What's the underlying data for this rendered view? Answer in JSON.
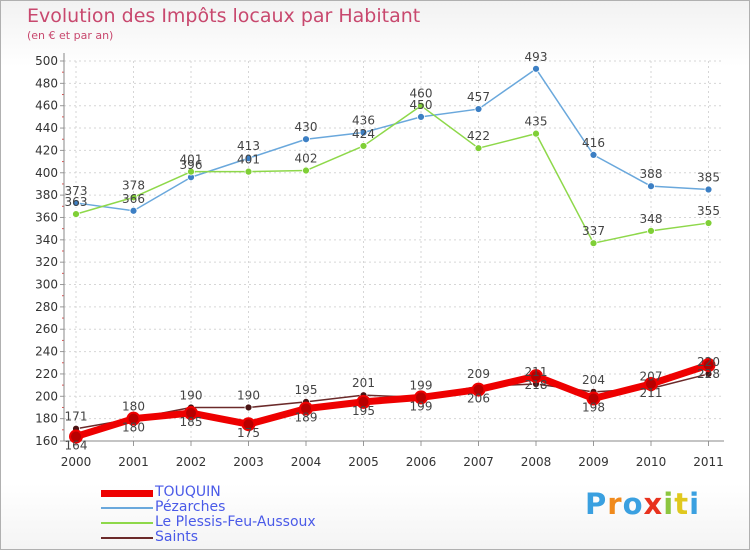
{
  "title": "Evolution des Impôts locaux par Habitant",
  "subtitle": "(en € et par an)",
  "logo": {
    "text": "Proxiti",
    "letter_colors": [
      "#3aa0e0",
      "#f08a1c",
      "#3aa0e0",
      "#e8321e",
      "#8cc63f",
      "#e0c81e",
      "#3aa0e0"
    ]
  },
  "chart_data": {
    "type": "line",
    "title": "Evolution des Impôts locaux par Habitant",
    "subtitle": "(en € et par an)",
    "xlabel": "",
    "ylabel": "",
    "categories": [
      "2000",
      "2001",
      "2002",
      "2003",
      "2004",
      "2005",
      "2006",
      "2007",
      "2008",
      "2009",
      "2010",
      "2011"
    ],
    "ylim": [
      160,
      500
    ],
    "yticks": [
      160,
      180,
      200,
      220,
      240,
      260,
      280,
      300,
      320,
      340,
      360,
      380,
      400,
      420,
      440,
      460,
      480,
      500
    ],
    "grid": true,
    "legend_position": "bottom-left",
    "series": [
      {
        "name": "TOUQUIN",
        "color": "#ee0000",
        "values": [
          164,
          180,
          185,
          175,
          189,
          195,
          199,
          206,
          218,
          198,
          211,
          228
        ]
      },
      {
        "name": "Pézarches",
        "color": "#6aa8dc",
        "values": [
          373,
          366,
          396,
          413,
          430,
          436,
          450,
          457,
          493,
          416,
          388,
          385
        ]
      },
      {
        "name": "Le Plessis-Feu-Aussoux",
        "color": "#8ed84a",
        "values": [
          363,
          378,
          401,
          401,
          402,
          424,
          460,
          422,
          435,
          337,
          348,
          355
        ]
      },
      {
        "name": "Saints",
        "color": "#6b2a2a",
        "values": [
          171,
          180,
          190,
          190,
          195,
          201,
          199,
          209,
          211,
          204,
          207,
          220
        ]
      }
    ]
  }
}
